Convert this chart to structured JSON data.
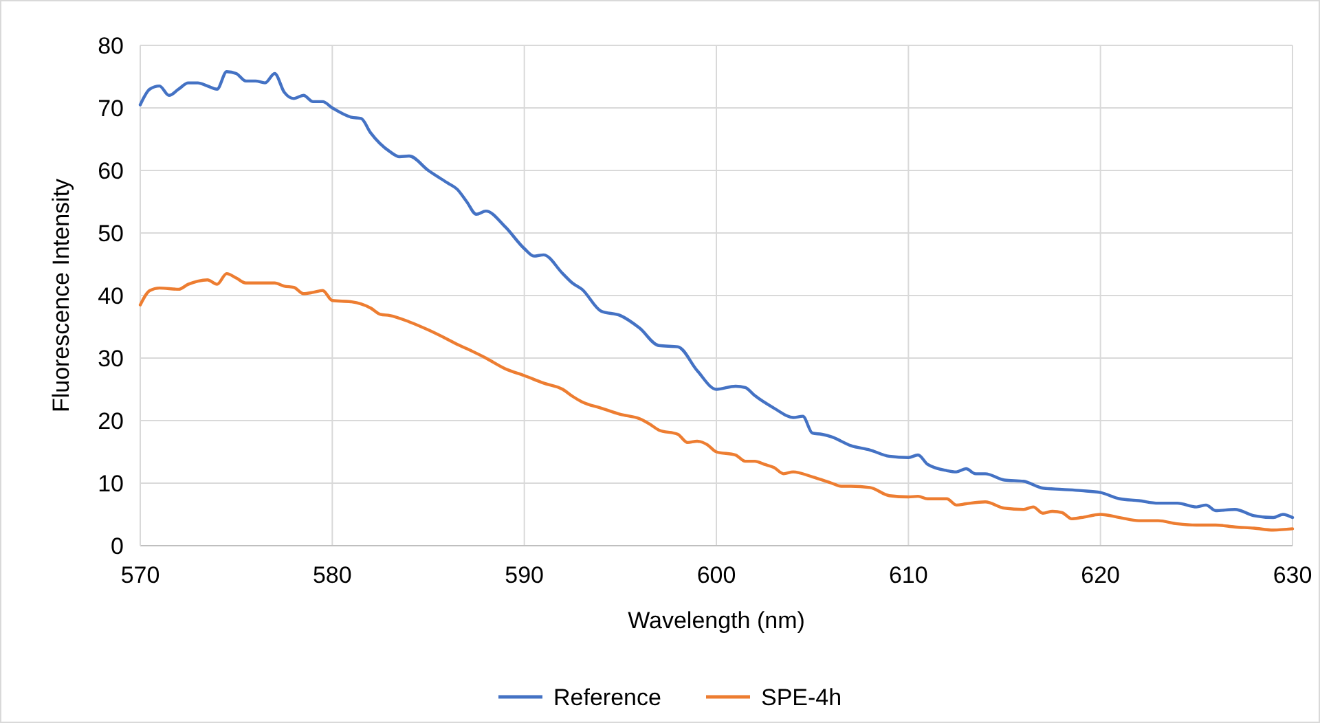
{
  "chart_data": {
    "type": "line",
    "xlabel": "Wavelength (nm)",
    "ylabel": "Fluorescence Intensity",
    "xlim": [
      570,
      630
    ],
    "xticks": [
      570,
      580,
      590,
      600,
      610,
      620,
      630
    ],
    "ylim": [
      0,
      80
    ],
    "yticks": [
      0,
      10,
      20,
      30,
      40,
      50,
      60,
      70,
      80
    ],
    "grid": true,
    "legend": "bottom",
    "marker": "none",
    "line_style": "solid",
    "series": [
      {
        "name": "Reference",
        "color": "#4472c4",
        "x": [
          570,
          570.5,
          571,
          571.5,
          572,
          572.5,
          573,
          573.5,
          574,
          574.5,
          575,
          575.5,
          576,
          576.5,
          577,
          577.5,
          578,
          578.5,
          579,
          579.5,
          580,
          581,
          581.5,
          582,
          583,
          583.5,
          584,
          585,
          586,
          586.5,
          587,
          587.5,
          588,
          589,
          590,
          590.5,
          591,
          592,
          592.5,
          593,
          594,
          595,
          596,
          597,
          598,
          599,
          600,
          601,
          601.5,
          602,
          603,
          604,
          604.5,
          605,
          605.5,
          606,
          607,
          608,
          609,
          610,
          610.5,
          611,
          612,
          612.5,
          613,
          613.5,
          614,
          615,
          616,
          617,
          618,
          619,
          620,
          621,
          622,
          623,
          624,
          625,
          625.5,
          626,
          627,
          628,
          629,
          629.5,
          630
        ],
        "values": [
          70.5,
          73,
          73.5,
          72,
          73,
          74,
          74,
          73.5,
          73,
          75.8,
          75.5,
          74.3,
          74.3,
          74,
          75.5,
          72.5,
          71.5,
          72,
          71,
          71,
          70,
          68.5,
          68.3,
          66,
          63,
          62.2,
          62.3,
          60,
          58,
          57,
          55,
          53,
          53.5,
          51,
          47.5,
          46.3,
          46.5,
          43.5,
          42,
          41,
          37.5,
          36.8,
          34.8,
          32,
          31.8,
          28,
          25,
          25.5,
          25.3,
          24,
          22,
          20.5,
          20.7,
          18,
          17.8,
          17.4,
          16,
          15.3,
          14.3,
          14.1,
          14.5,
          13,
          12,
          11.8,
          12.3,
          11.5,
          11.5,
          10.5,
          10.3,
          9.2,
          9,
          8.8,
          8.5,
          7.5,
          7.2,
          6.8,
          6.8,
          6.2,
          6.5,
          5.6,
          5.8,
          4.8,
          4.5,
          5,
          4.5
        ]
      },
      {
        "name": "SPE-4h",
        "color": "#ed7d31",
        "x": [
          570,
          570.5,
          571,
          572,
          572.5,
          573,
          573.5,
          574,
          574.5,
          575,
          575.5,
          576,
          577,
          577.5,
          578,
          578.5,
          579,
          579.5,
          580,
          581,
          582,
          582.5,
          583,
          584,
          585,
          586,
          586.5,
          587,
          588,
          589,
          590,
          591,
          592,
          592.5,
          593,
          594,
          595,
          596,
          596.5,
          597,
          598,
          598.5,
          599,
          599.5,
          600,
          601,
          601.5,
          602,
          602.5,
          603,
          603.5,
          604,
          605,
          606,
          606.5,
          607,
          608,
          609,
          610,
          610.5,
          611,
          612,
          612.5,
          613,
          614,
          615,
          616,
          616.5,
          617,
          617.5,
          618,
          618.5,
          619,
          620,
          621,
          622,
          623,
          624,
          625,
          626,
          627,
          628,
          629,
          630
        ],
        "values": [
          38.5,
          40.8,
          41.2,
          41,
          41.8,
          42.3,
          42.5,
          41.8,
          43.5,
          42.8,
          42,
          42,
          42,
          41.5,
          41.3,
          40.3,
          40.5,
          40.8,
          39.2,
          39,
          38,
          37,
          36.8,
          35.8,
          34.5,
          33,
          32.2,
          31.5,
          30,
          28.3,
          27.2,
          26,
          25,
          23.9,
          23,
          22,
          21,
          20.3,
          19.5,
          18.5,
          17.8,
          16.5,
          16.7,
          16.2,
          15,
          14.5,
          13.5,
          13.5,
          13,
          12.5,
          11.5,
          11.8,
          11,
          10,
          9.5,
          9.5,
          9.3,
          8,
          7.8,
          7.9,
          7.5,
          7.5,
          6.5,
          6.7,
          7,
          6,
          5.8,
          6.2,
          5.2,
          5.5,
          5.3,
          4.3,
          4.5,
          5,
          4.5,
          4,
          4,
          3.5,
          3.3,
          3.3,
          3,
          2.8,
          2.5,
          2.7
        ]
      }
    ]
  }
}
